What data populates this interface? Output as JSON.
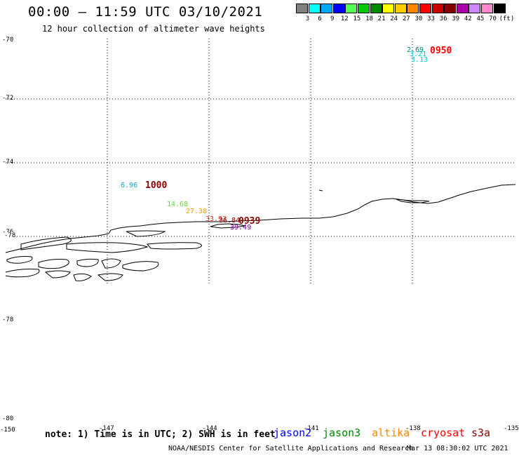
{
  "header": {
    "title": "00:00 – 11:59 UTC 03/10/2021",
    "subtitle": "12 hour collection of altimeter wave heights"
  },
  "legend": {
    "colors": [
      "#808080",
      "#00ffff",
      "#00aaff",
      "#0000ff",
      "#55ff55",
      "#00cc00",
      "#008800",
      "#ffff00",
      "#ffcc00",
      "#ff8800",
      "#ff0000",
      "#cc0000",
      "#880000",
      "#aa00aa",
      "#cc88ff",
      "#ff88cc",
      "#000000"
    ],
    "labels": [
      "3",
      "6",
      "9",
      "12",
      "15",
      "18",
      "21",
      "24",
      "27",
      "30",
      "33",
      "36",
      "39",
      "42",
      "45",
      "70",
      "(ft)"
    ]
  },
  "axes": {
    "lat_labels": [
      "-70",
      "-72",
      "-74",
      "-76",
      "-78",
      "-78",
      "-80"
    ],
    "lon_labels": [
      "-150",
      "-147",
      "-144",
      "-141",
      "-138",
      "-135"
    ]
  },
  "observations": [
    {
      "value": "2.69",
      "color": "#008b8b"
    },
    {
      "value": "3.21",
      "color": "#00c8c8"
    },
    {
      "value": "3.13",
      "color": "#00c8c8"
    },
    {
      "value": "6.96",
      "color": "#00aacc"
    },
    {
      "value": "14.68",
      "color": "#55dd33"
    },
    {
      "value": "27.38",
      "color": "#ff9900"
    },
    {
      "value": "33.93",
      "color": "#ff2222"
    },
    {
      "value": "36.84",
      "color": "#880000"
    },
    {
      "value": "39.49",
      "color": "#8800aa"
    }
  ],
  "time_labels": [
    {
      "text": "0950",
      "color": "#ff0000"
    },
    {
      "text": "1000",
      "color": "#880000"
    },
    {
      "text": "0939",
      "color": "#880000"
    }
  ],
  "footer": {
    "note": "note: 1) Time is in UTC; 2) SWH is in feet",
    "satellites": [
      {
        "name": "jason2",
        "color": "#0000ff"
      },
      {
        "name": "jason3",
        "color": "#008800"
      },
      {
        "name": "altika",
        "color": "#ff8800"
      },
      {
        "name": "cryosat",
        "color": "#ff0000"
      },
      {
        "name": "s3a",
        "color": "#880000"
      }
    ],
    "credit": "NOAA/NESDIS Center for Satellite Applications and Research",
    "timestamp": "Mar 13 08:30:02 UTC 2021"
  }
}
